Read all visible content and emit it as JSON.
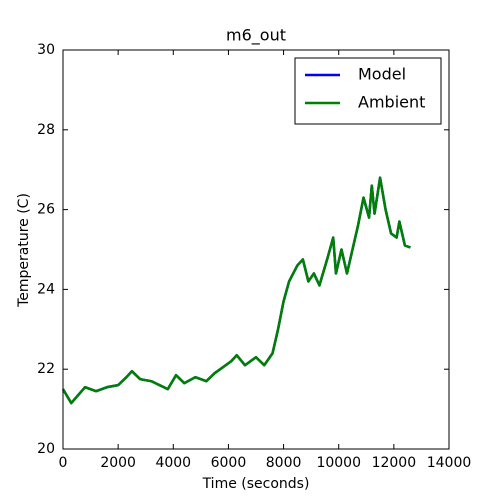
{
  "chart_data": {
    "type": "line",
    "title": "m6_out",
    "x_label": "Time (seconds)",
    "y_label": "Temperature (C)",
    "x": [
      0,
      300,
      800,
      1200,
      1600,
      2000,
      2300,
      2500,
      2800,
      3200,
      3500,
      3800,
      4100,
      4400,
      4800,
      5200,
      5500,
      5800,
      6100,
      6300,
      6600,
      7000,
      7300,
      7600,
      7800,
      8000,
      8200,
      8500,
      8700,
      8900,
      9100,
      9300,
      9600,
      9800,
      9900,
      10100,
      10300,
      10500,
      10700,
      10900,
      11100,
      11200,
      11300,
      11500,
      11700,
      11900,
      12100,
      12200,
      12400,
      12600
    ],
    "series": [
      {
        "name": "Model",
        "color": "#0000ff",
        "values": [
          21.5,
          21.15,
          21.55,
          21.45,
          21.55,
          21.6,
          21.8,
          21.95,
          21.75,
          21.7,
          21.6,
          21.5,
          21.85,
          21.65,
          21.8,
          21.7,
          21.9,
          22.05,
          22.2,
          22.35,
          22.1,
          22.3,
          22.1,
          22.4,
          23.0,
          23.7,
          24.2,
          24.6,
          24.75,
          24.2,
          24.4,
          24.1,
          24.8,
          25.3,
          24.4,
          25.0,
          24.4,
          25.0,
          25.6,
          26.3,
          25.8,
          26.6,
          25.9,
          26.8,
          26.0,
          25.4,
          25.3,
          25.7,
          25.1,
          25.05
        ]
      },
      {
        "name": "Ambient",
        "color": "#008000",
        "values": [
          21.5,
          21.15,
          21.55,
          21.45,
          21.55,
          21.6,
          21.8,
          21.95,
          21.75,
          21.7,
          21.6,
          21.5,
          21.85,
          21.65,
          21.8,
          21.7,
          21.9,
          22.05,
          22.2,
          22.35,
          22.1,
          22.3,
          22.1,
          22.4,
          23.0,
          23.7,
          24.2,
          24.6,
          24.75,
          24.2,
          24.4,
          24.1,
          24.8,
          25.3,
          24.4,
          25.0,
          24.4,
          25.0,
          25.6,
          26.3,
          25.8,
          26.6,
          25.9,
          26.8,
          26.0,
          25.4,
          25.3,
          25.7,
          25.1,
          25.05
        ]
      }
    ],
    "xlim": [
      0,
      14000
    ],
    "xticks": [
      0,
      2000,
      4000,
      6000,
      8000,
      10000,
      12000,
      14000
    ],
    "ylim": [
      20,
      30
    ],
    "yticks": [
      20,
      22,
      24,
      26,
      28,
      30
    ],
    "legend": "upper right",
    "grid": false
  }
}
